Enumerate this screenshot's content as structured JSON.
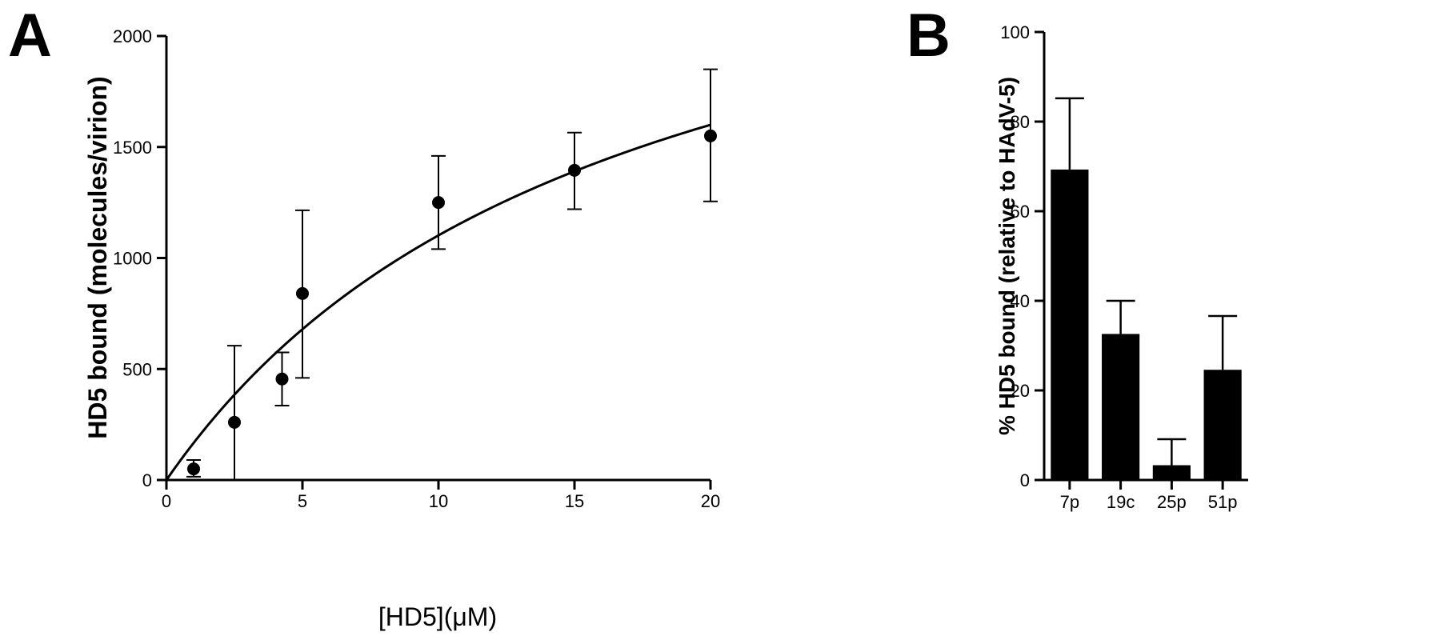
{
  "chart_data": [
    {
      "panel": "A",
      "type": "scatter",
      "xlabel": "[HD5](μM)",
      "ylabel": "HD5 bound (molecules/virion)",
      "xlim": [
        0,
        20
      ],
      "ylim": [
        0,
        2000
      ],
      "xticks": [
        0,
        5,
        10,
        15,
        20
      ],
      "yticks": [
        0,
        500,
        1000,
        1500,
        2000
      ],
      "points": [
        {
          "x": 1,
          "y": 50,
          "err_low": 35,
          "err_high": 40
        },
        {
          "x": 2.5,
          "y": 260,
          "err_low": 260,
          "err_high": 345
        },
        {
          "x": 4.25,
          "y": 455,
          "err_low": 120,
          "err_high": 120
        },
        {
          "x": 5,
          "y": 840,
          "err_low": 380,
          "err_high": 375
        },
        {
          "x": 10,
          "y": 1250,
          "err_low": 210,
          "err_high": 210
        },
        {
          "x": 15,
          "y": 1395,
          "err_low": 175,
          "err_high": 170
        },
        {
          "x": 20,
          "y": 1550,
          "err_low": 295,
          "err_high": 300
        }
      ],
      "fit": {
        "model": "one-site binding",
        "bmax": 2920,
        "kd": 16.5
      }
    },
    {
      "panel": "B",
      "type": "bar",
      "ylabel": "% HD5 bound (relative to HAdV-5)",
      "ylim": [
        0,
        100
      ],
      "yticks": [
        0,
        20,
        40,
        60,
        80,
        100
      ],
      "categories": [
        "7p",
        "19c",
        "25p",
        "51p"
      ],
      "values": [
        69.3,
        32.6,
        3.3,
        24.6
      ],
      "errors": [
        15.9,
        7.4,
        5.8,
        12.0
      ]
    }
  ]
}
